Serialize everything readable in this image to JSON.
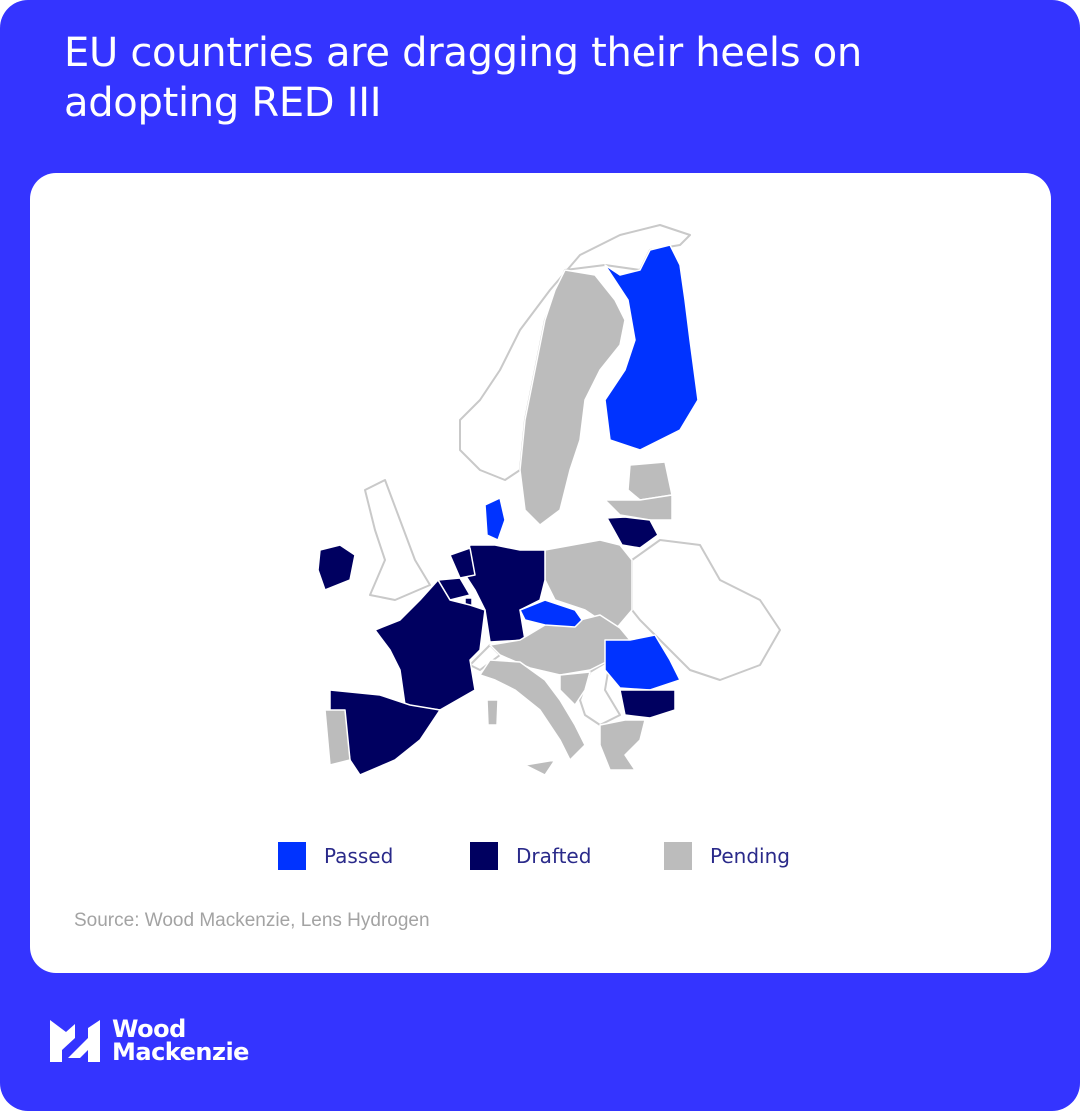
{
  "title": "EU countries are dragging their heels on adopting RED III",
  "legend": [
    {
      "label": "Passed",
      "color": "#0033ff"
    },
    {
      "label": "Drafted",
      "color": "#000060"
    },
    {
      "label": "Pending",
      "color": "#bcbcbc"
    }
  ],
  "non_eu_color": "#ffffff",
  "regions": {
    "Finland": "Passed",
    "Denmark": "Passed",
    "Czechia": "Passed",
    "Romania": "Passed",
    "Ireland": "Drafted",
    "France": "Drafted",
    "Spain": "Drafted",
    "Germany": "Drafted",
    "Netherlands": "Drafted",
    "Belgium": "Drafted",
    "Luxembourg": "Drafted",
    "Lithuania": "Drafted",
    "Bulgaria": "Drafted",
    "Sweden": "Pending",
    "Estonia": "Pending",
    "Latvia": "Pending",
    "Poland": "Pending",
    "Slovakia, Hungary, Austria, Slovenia": "Pending",
    "Croatia": "Pending",
    "Italy": "Pending",
    "Greece": "Pending",
    "Portugal": "Pending"
  },
  "source": "Source: Wood Mackenzie, Lens Hydrogen",
  "logo": {
    "line1": "Wood",
    "line2": "Mackenzie"
  }
}
